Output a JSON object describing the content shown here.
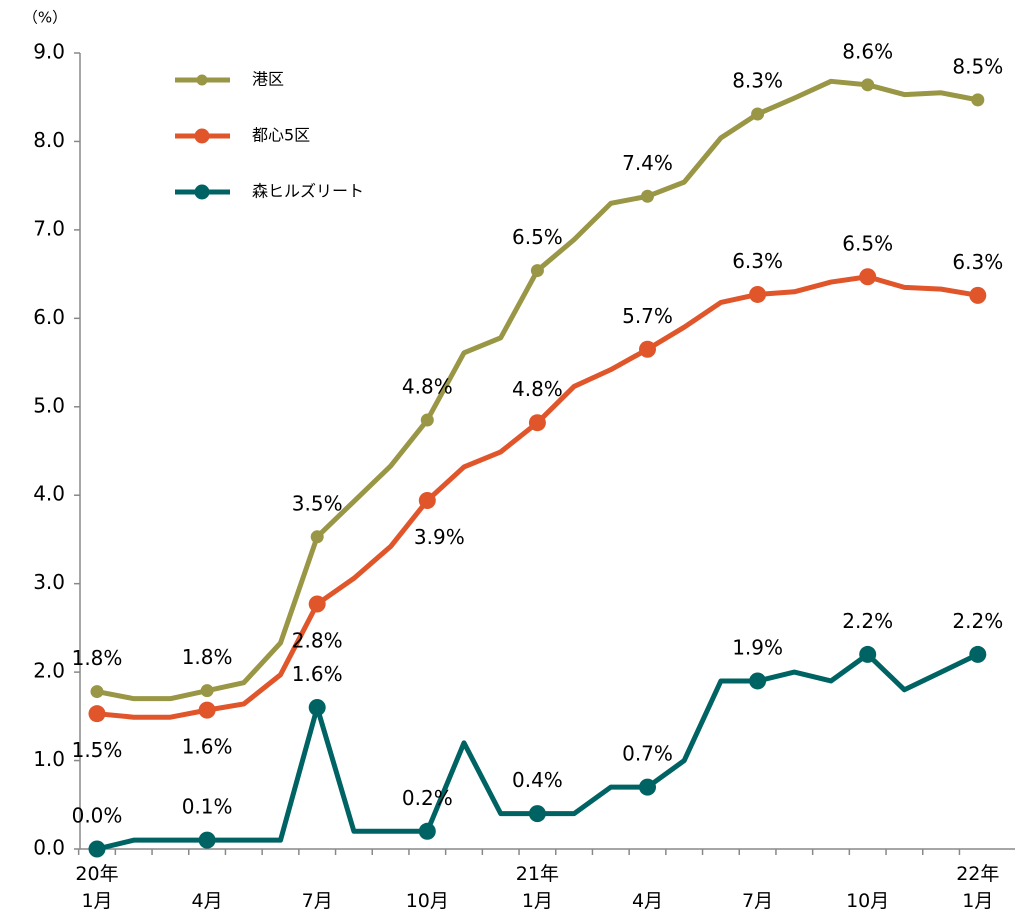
{
  "chart_data": {
    "type": "line",
    "y_label": "（%）",
    "categories": [
      "20年\n1月",
      null,
      null,
      "4月",
      null,
      null,
      "7月",
      null,
      null,
      "10月",
      null,
      null,
      "21年\n1月",
      null,
      null,
      "4月",
      null,
      null,
      "7月",
      null,
      null,
      "10月",
      null,
      null,
      "22年\n1月"
    ],
    "series": [
      {
        "name": "港区",
        "color": "#999645",
        "values": [
          1.78,
          1.7,
          1.7,
          1.79,
          1.88,
          2.33,
          3.53,
          3.93,
          4.33,
          4.85,
          5.61,
          5.78,
          6.54,
          6.89,
          7.3,
          7.38,
          7.54,
          8.04,
          8.31,
          8.49,
          8.68,
          8.64,
          8.53,
          8.55,
          8.47
        ],
        "value_labels": [
          "1.8%",
          null,
          null,
          "1.8%",
          null,
          null,
          "3.5%",
          null,
          null,
          "4.8%",
          null,
          null,
          "6.5%",
          null,
          null,
          "7.4%",
          null,
          null,
          "8.3%",
          null,
          null,
          "8.6%",
          null,
          null,
          "8.5%"
        ]
      },
      {
        "name": "都心5区",
        "color": "#e0552a",
        "values": [
          1.53,
          1.49,
          1.49,
          1.57,
          1.64,
          1.97,
          2.77,
          3.06,
          3.42,
          3.94,
          4.32,
          4.49,
          4.82,
          5.23,
          5.42,
          5.65,
          5.9,
          6.18,
          6.27,
          6.3,
          6.41,
          6.47,
          6.35,
          6.33,
          6.26
        ],
        "value_labels": [
          "1.5%",
          null,
          null,
          "1.6%",
          null,
          null,
          "2.8%",
          null,
          null,
          "3.9%",
          null,
          null,
          "4.8%",
          null,
          null,
          "5.7%",
          null,
          null,
          "6.3%",
          null,
          null,
          "6.5%",
          null,
          null,
          "6.3%"
        ]
      },
      {
        "name": "森ヒルズリート",
        "color": "#006363",
        "values": [
          0.0,
          0.1,
          0.1,
          0.1,
          0.1,
          0.1,
          1.6,
          0.2,
          0.2,
          0.2,
          1.2,
          0.4,
          0.4,
          0.4,
          0.7,
          0.7,
          1.0,
          1.9,
          1.9,
          2.0,
          1.9,
          2.2,
          1.8,
          2.0,
          2.2
        ],
        "value_labels": [
          "0.0%",
          null,
          null,
          "0.1%",
          null,
          null,
          "1.6%",
          null,
          null,
          "0.2%",
          null,
          null,
          "0.4%",
          null,
          null,
          "0.7%",
          null,
          null,
          "1.9%",
          null,
          null,
          "2.2%",
          null,
          null,
          "2.2%"
        ]
      }
    ],
    "ylim": [
      0,
      9
    ],
    "yticks": [
      {
        "value": 0,
        "label": "0.0"
      },
      {
        "value": 1,
        "label": "1.0"
      },
      {
        "value": 2,
        "label": "2.0"
      },
      {
        "value": 3,
        "label": "3.0"
      },
      {
        "value": 4,
        "label": "4.0"
      },
      {
        "value": 5,
        "label": "5.0"
      },
      {
        "value": 6,
        "label": "6.0"
      },
      {
        "value": 7,
        "label": "7.0"
      },
      {
        "value": 8,
        "label": "8.0"
      },
      {
        "value": 9,
        "label": "9.0"
      }
    ],
    "legend": "upper left",
    "grid": false
  }
}
